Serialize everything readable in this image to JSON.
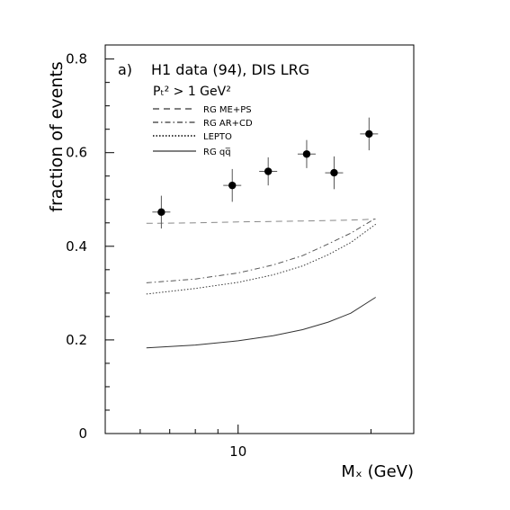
{
  "chart_data": {
    "type": "scatter",
    "panel_label": "a)",
    "annotation": "H1 data (94),  DIS LRG",
    "cut_label": "Pₜ² > 1 GeV²",
    "xlabel": "Mₓ (GeV)",
    "ylabel": "fraction of events",
    "x_scale": "log",
    "xlim": [
      5,
      25
    ],
    "ylim": [
      0,
      0.83
    ],
    "x_ticks": [
      {
        "value": 10,
        "label": "10"
      }
    ],
    "y_ticks": [
      {
        "value": 0,
        "label": "0"
      },
      {
        "value": 0.2,
        "label": "0.2"
      },
      {
        "value": 0.4,
        "label": "0.4"
      },
      {
        "value": 0.6,
        "label": "0.6"
      },
      {
        "value": 0.8,
        "label": "0.8"
      }
    ],
    "data_points": {
      "x": [
        6.7,
        9.7,
        11.7,
        14.3,
        16.5,
        19.8
      ],
      "y": [
        0.473,
        0.53,
        0.56,
        0.597,
        0.557,
        0.64
      ],
      "err": [
        0.035,
        0.035,
        0.03,
        0.03,
        0.035,
        0.035
      ]
    },
    "curves": [
      {
        "name": "RG ME+PS",
        "style": "dashed",
        "color": "#888888",
        "x": [
          6.2,
          8,
          10,
          12,
          14,
          16,
          18,
          20.5
        ],
        "y": [
          0.449,
          0.45,
          0.452,
          0.453,
          0.454,
          0.455,
          0.456,
          0.458
        ]
      },
      {
        "name": "RG AR+CD",
        "style": "dashdot",
        "color": "#555555",
        "x": [
          6.2,
          8,
          10,
          12,
          14,
          16,
          18,
          20.5
        ],
        "y": [
          0.322,
          0.33,
          0.343,
          0.36,
          0.38,
          0.405,
          0.428,
          0.46
        ]
      },
      {
        "name": "LEPTO",
        "style": "dotted",
        "color": "#333333",
        "x": [
          6.2,
          8,
          10,
          12,
          14,
          16,
          18,
          20.5
        ],
        "y": [
          0.298,
          0.31,
          0.323,
          0.339,
          0.358,
          0.382,
          0.408,
          0.447
        ]
      },
      {
        "name": "RG qq̅",
        "style": "solid",
        "color": "#333333",
        "x": [
          6.2,
          8,
          10,
          12,
          14,
          16,
          18,
          20.5
        ],
        "y": [
          0.183,
          0.189,
          0.198,
          0.209,
          0.222,
          0.238,
          0.257,
          0.291
        ]
      }
    ]
  }
}
